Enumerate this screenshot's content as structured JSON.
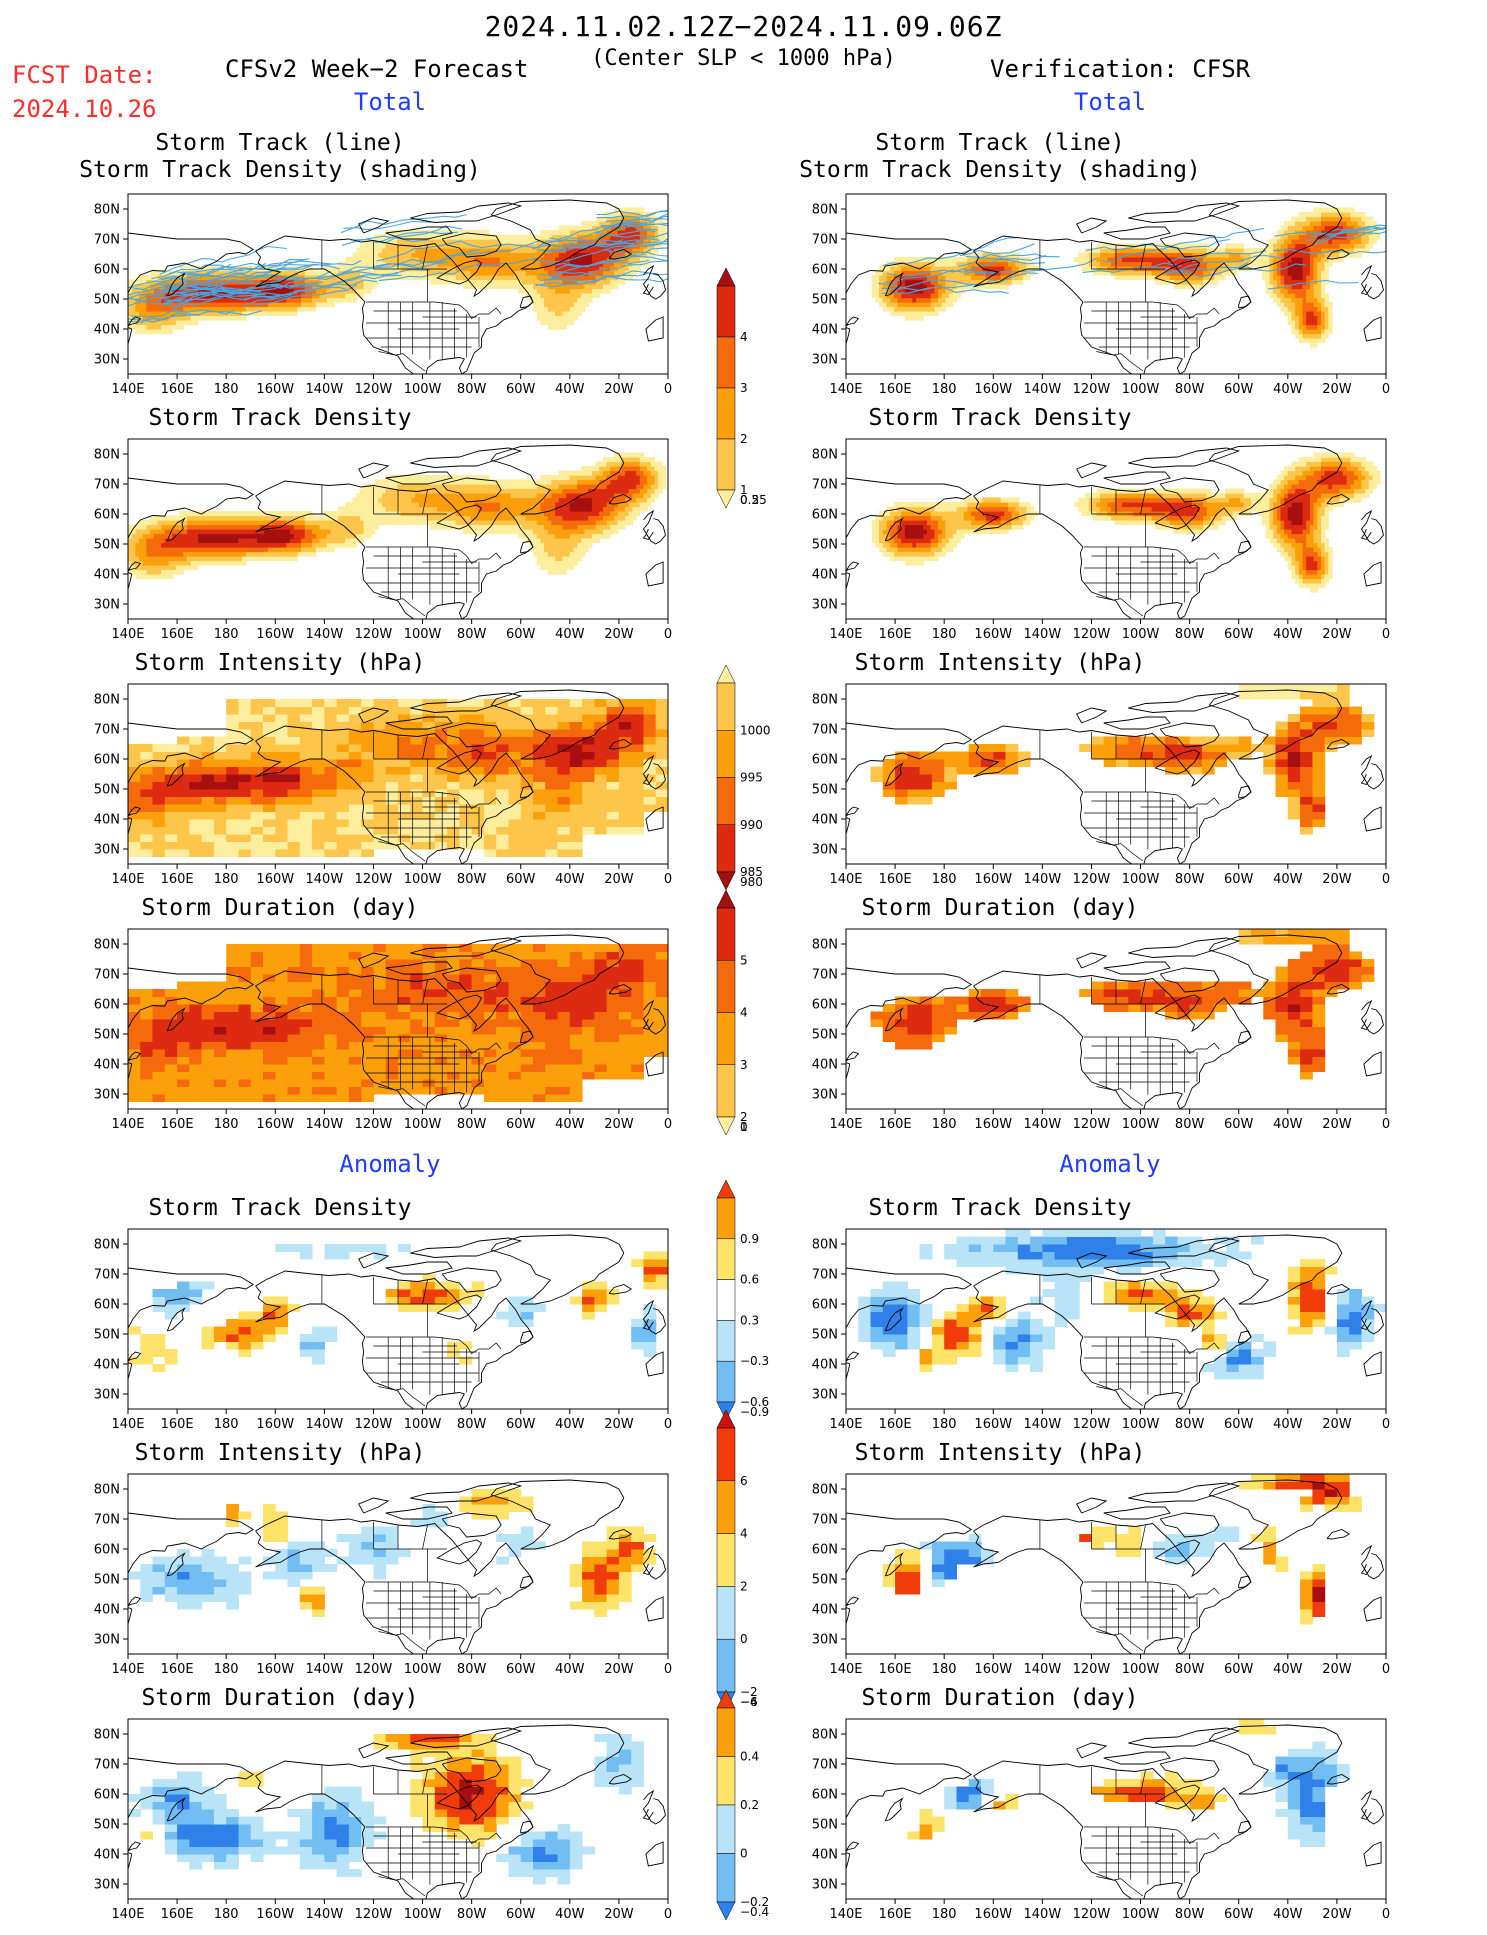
{
  "header": {
    "date_range": "2024.11.02.12Z−2024.11.09.06Z",
    "subtitle": "(Center SLP < 1000 hPa)",
    "fcst_label": "FCST Date:",
    "fcst_date": "2024.10.26",
    "left_title": "CFSv2 Week−2 Forecast",
    "right_title": "Verification: CFSR",
    "total_label": "Total",
    "anomaly_label": "Anomaly"
  },
  "panel_titles": {
    "track_line": "Storm Track (line)",
    "track_shading": "Storm Track Density (shading)",
    "density": "Storm Track Density",
    "intensity": "Storm Intensity (hPa)",
    "duration": "Storm Duration (day)"
  },
  "axes": {
    "lon_ticks": [
      "140E",
      "160E",
      "180",
      "160W",
      "140W",
      "120W",
      "100W",
      "80W",
      "60W",
      "40W",
      "20W",
      "0"
    ],
    "lat_ticks": [
      "80N",
      "70N",
      "60N",
      "50N",
      "40N",
      "30N"
    ]
  },
  "colorbars": {
    "density_total": {
      "labels": [
        "4",
        "3",
        "2",
        "1",
        "0.5",
        "0.25"
      ],
      "colors": [
        "#a50f0f",
        "#dc2b10",
        "#f56a0a",
        "#fb9f0a",
        "#fdc54a",
        "#fdee9e"
      ]
    },
    "intensity_total": {
      "labels": [
        "1000",
        "995",
        "990",
        "985",
        "980"
      ],
      "colors": [
        "#fdee9e",
        "#fdc54a",
        "#fb9f0a",
        "#f56a0a",
        "#dc2b10",
        "#a50f0f"
      ]
    },
    "duration_total": {
      "labels": [
        "5",
        "4",
        "3",
        "2",
        "1",
        "0"
      ],
      "colors": [
        "#a50f0f",
        "#dc2b10",
        "#f56a0a",
        "#fb9f0a",
        "#fdc54a",
        "#fdee9e"
      ]
    },
    "density_anom": {
      "labels": [
        "0.9",
        "0.6",
        "0.3",
        "−0.3",
        "−0.6",
        "−0.9"
      ],
      "colors": [
        "#f03c0a",
        "#fb9f0a",
        "#fde36a",
        "#ffffff",
        "#b9e4f8",
        "#72bdf2",
        "#2f80e8"
      ]
    },
    "intensity_anom": {
      "labels": [
        "6",
        "4",
        "2",
        "0",
        "−2",
        "−4",
        "−6"
      ],
      "colors": [
        "#cc1010",
        "#f03c0a",
        "#fb9f0a",
        "#fde36a",
        "#b9e4f8",
        "#72bdf2",
        "#2f80e8"
      ]
    },
    "duration_anom": {
      "labels": [
        "0.4",
        "0.2",
        "0",
        "−0.2",
        "−0.4"
      ],
      "colors": [
        "#f03c0a",
        "#fb9f0a",
        "#fde36a",
        "#b9e4f8",
        "#72bdf2",
        "#2f80e8"
      ]
    }
  },
  "palettes": {
    "warm": [
      "#fdee9e",
      "#fdc54a",
      "#fb9f0a",
      "#f56a0a",
      "#dc2b10",
      "#a50f0f"
    ],
    "diverging": [
      "#2f80e8",
      "#72bdf2",
      "#b9e4f8",
      "#fde36a",
      "#fb9f0a",
      "#f03c0a",
      "#a50f0f"
    ],
    "track_line": "#4aa6e0"
  }
}
